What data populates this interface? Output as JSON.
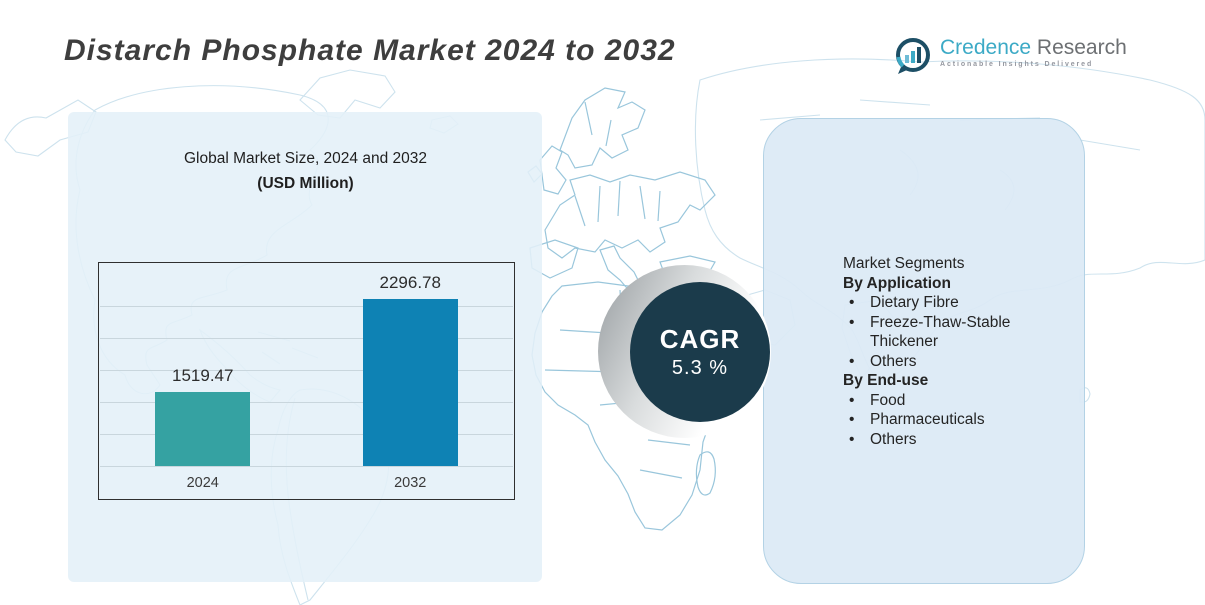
{
  "header": {
    "title": "Distarch Phosphate Market 2024 to 2032",
    "logo": {
      "brand": "Credence",
      "brand2": "Research",
      "tagline": "Actionable Insights Delivered"
    }
  },
  "chart_data": {
    "type": "bar",
    "title": "Global Market Size, 2024 and 2032",
    "subtitle": "(USD Million)",
    "unit": "USD Million",
    "categories": [
      "2024",
      "2032"
    ],
    "values": [
      1519.47,
      2296.78
    ],
    "labels": [
      "1519.47",
      "2296.78"
    ],
    "bar_colors": [
      "#35a2a2",
      "#0e82b4"
    ],
    "ylim": [
      900,
      2600
    ],
    "grid": true,
    "legend": false
  },
  "cagr": {
    "label": "CAGR",
    "value": "5.3 %"
  },
  "segments": {
    "heading": "Market Segments",
    "groups": [
      {
        "title": "By Application",
        "items": [
          "Dietary Fibre",
          "Freeze-Thaw-Stable Thickener",
          "Others"
        ]
      },
      {
        "title": "By End-use",
        "items": [
          "Food",
          "Pharmaceuticals",
          "Others"
        ]
      }
    ]
  },
  "icons": {
    "logo_icon": "bar-chart-bubble-icon",
    "background": "world-map"
  },
  "colors": {
    "bar_2024": "#35a2a2",
    "bar_2032": "#0e82b4",
    "cagr_circle": "#1b3b4b",
    "panel_left": "#e4f0f8",
    "panel_right": "#dbeaf5",
    "map_line_strong": "#8fc0d8",
    "map_line_faint": "#bdd9e8",
    "brand_teal": "#3caac6",
    "brand_gray": "#6d7073",
    "title_text": "#3e3e3e"
  }
}
